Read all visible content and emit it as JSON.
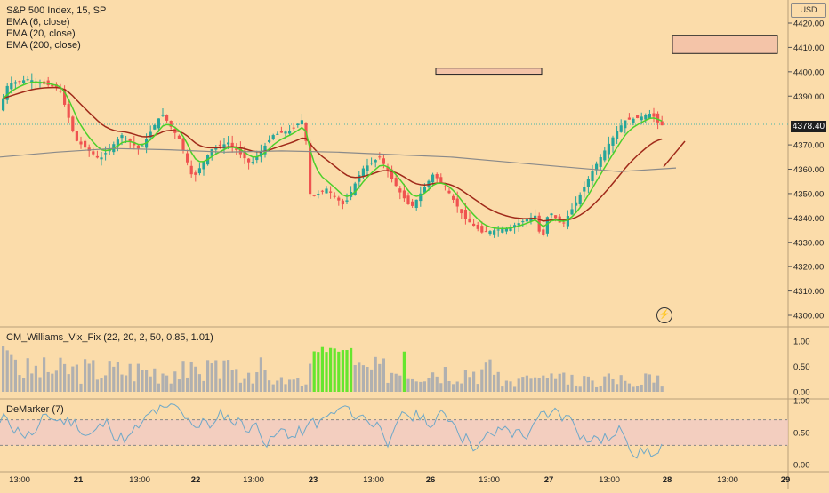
{
  "header": {
    "symbol_title": "S&P 500 Index, 15, SP",
    "ema_labels": [
      "EMA (6, close)",
      "EMA (20, close)",
      "EMA (200, close)"
    ],
    "currency": "USD",
    "last_price_tag": "4378.40"
  },
  "colors": {
    "background": "#fbdcaa",
    "up_candle": "#26a69a",
    "down_candle": "#ef5350",
    "ema6": "#4cd02a",
    "ema20": "#a02a1a",
    "ema200": "#8a8a8a",
    "vix_bar": "#b0b0b0",
    "vix_highlight": "#66e62e",
    "demarker_line": "#6ea8c8",
    "demarker_band": "#f0c8c8"
  },
  "price_axis": {
    "ticks": [
      "4420.00",
      "4410.00",
      "4400.00",
      "4390.00",
      "4370.00",
      "4360.00",
      "4350.00",
      "4340.00",
      "4330.00",
      "4320.00",
      "4310.00",
      "4300.00"
    ]
  },
  "time_axis": {
    "labels": [
      {
        "text": "13:00",
        "day": false
      },
      {
        "text": "21",
        "day": true
      },
      {
        "text": "13:00",
        "day": false
      },
      {
        "text": "22",
        "day": true
      },
      {
        "text": "13:00",
        "day": false
      },
      {
        "text": "23",
        "day": true
      },
      {
        "text": "13:00",
        "day": false
      },
      {
        "text": "26",
        "day": true
      },
      {
        "text": "13:00",
        "day": false
      },
      {
        "text": "27",
        "day": true
      },
      {
        "text": "13:00",
        "day": false
      },
      {
        "text": "28",
        "day": true
      },
      {
        "text": "13:00",
        "day": false
      },
      {
        "text": "29",
        "day": true
      }
    ]
  },
  "vix_pane": {
    "label": "CM_Williams_Vix_Fix (22, 20, 2, 50, 0.85, 1.01)",
    "ticks": [
      "1.00",
      "0.50",
      "0.00"
    ]
  },
  "demarker_pane": {
    "label": "DeMarker (7)",
    "ticks": [
      "1.00",
      "0.50",
      "0.00"
    ]
  },
  "chart_data": {
    "type": "candlestick",
    "price_range": [
      4290,
      4425
    ],
    "drawn_rectangles": [
      {
        "price_top": 4401.5,
        "price_bottom": 4399.0
      },
      {
        "price_top": 4415.0,
        "price_bottom": 4407.5
      }
    ],
    "ema200_approx": [
      4365,
      4367,
      4368.5,
      4368,
      4367,
      4367.5,
      4367,
      4366,
      4365,
      4363,
      4361,
      4359,
      4360.5
    ],
    "vix_fix_levels": "0.00-1.00 histogram",
    "demarker_levels": [
      0.3,
      0.7
    ]
  }
}
